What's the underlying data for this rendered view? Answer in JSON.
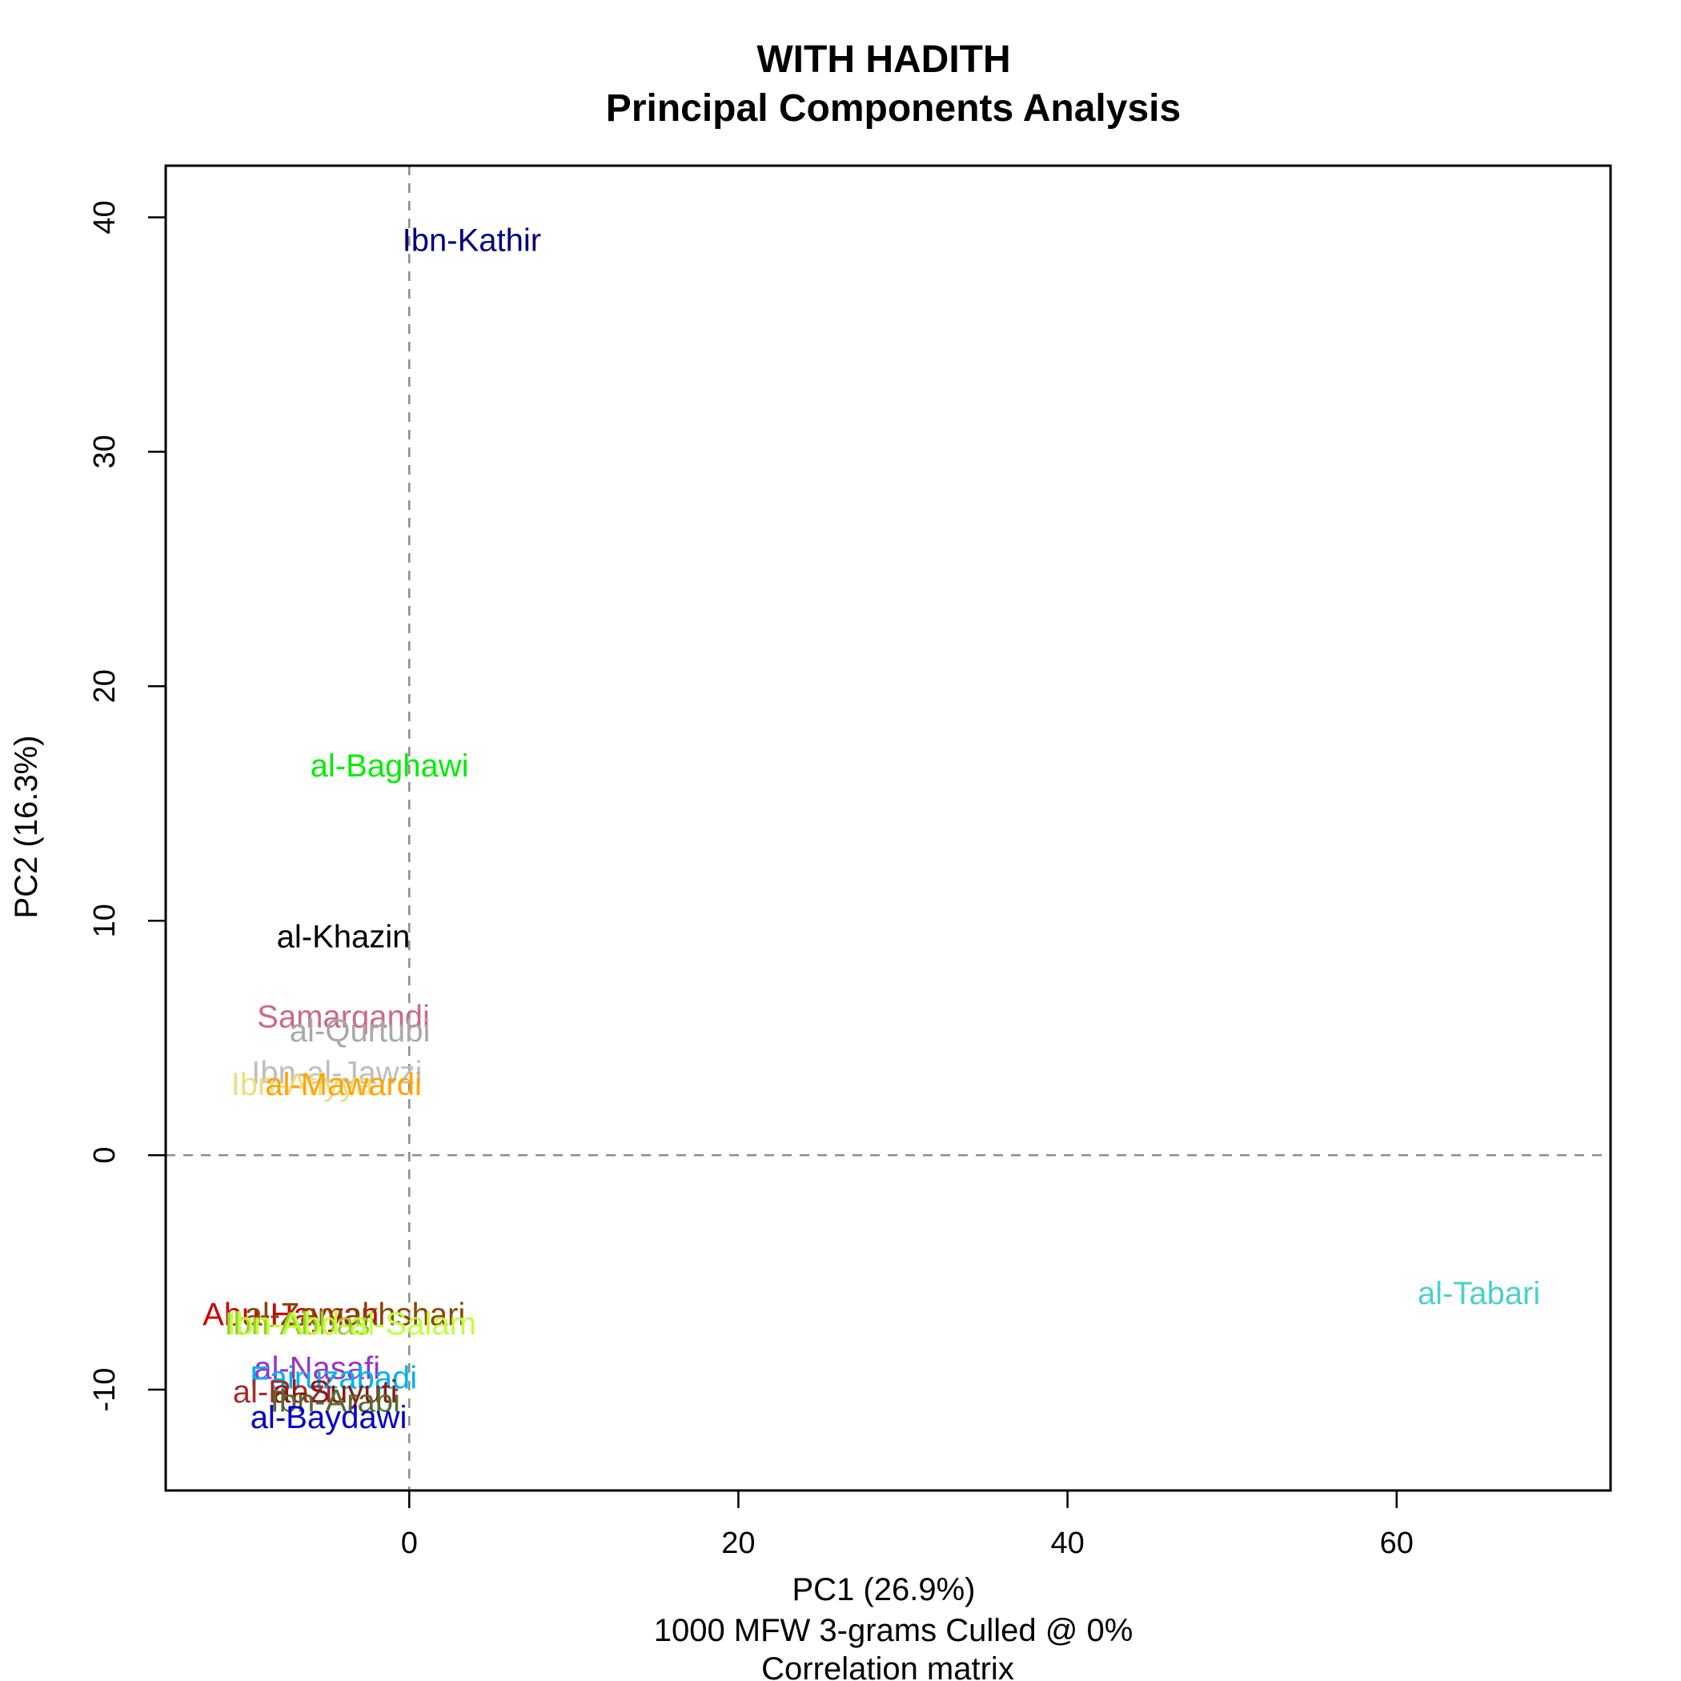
{
  "chart_data": {
    "type": "scatter",
    "title": "WITH HADITH",
    "subtitle": "Principal Components Analysis",
    "xlabel": "PC1 (26.9%)",
    "xlabel_lines": [
      "1000 MFW 3-grams Culled @ 0%",
      "Correlation matrix"
    ],
    "ylabel": "PC2 (16.3%)",
    "xlim": [
      -14.8,
      73
    ],
    "ylim": [
      -14.3,
      42.2
    ],
    "x_ticks": [
      0,
      20,
      40,
      60
    ],
    "y_ticks": [
      -10,
      0,
      10,
      20,
      30,
      40
    ],
    "reference_lines": {
      "x": 0,
      "y": 0,
      "style": "dashed"
    },
    "grid": false,
    "points": [
      {
        "label": "Ibn-Kathir",
        "x": 3.8,
        "y": 39.0,
        "color": "#000080"
      },
      {
        "label": "al-Baghawi",
        "x": -1.2,
        "y": 16.6,
        "color": "#00ee00"
      },
      {
        "label": "al-Khazin",
        "x": -4.0,
        "y": 9.3,
        "color": "#000000"
      },
      {
        "label": "Samarqandi",
        "x": -4.0,
        "y": 5.9,
        "color": "#cd6889"
      },
      {
        "label": "al-Qurtubi",
        "x": -3.0,
        "y": 5.3,
        "color": "#a9a9a9"
      },
      {
        "label": "Ibn-al-Jawzi",
        "x": -4.4,
        "y": 3.5,
        "color": "#bebebe"
      },
      {
        "label": "Ibn-Atiyya",
        "x": -6.5,
        "y": 3.0,
        "color": "#eedd82"
      },
      {
        "label": "al-Mawardi",
        "x": -4.0,
        "y": 3.0,
        "color": "#ffa500"
      },
      {
        "label": "Abu-Hayyan",
        "x": -7.2,
        "y": -6.8,
        "color": "#cd0000"
      },
      {
        "label": "al-Zamakhshari",
        "x": -3.3,
        "y": -6.8,
        "color": "#8b4500"
      },
      {
        "label": "Ibn-Abbas",
        "x": -6.8,
        "y": -7.2,
        "color": "#9acd32"
      },
      {
        "label": "Ibn-Abd-al-Salam",
        "x": -3.5,
        "y": -7.2,
        "color": "#c0ff3e"
      },
      {
        "label": "al-Tabari",
        "x": 65.0,
        "y": -5.9,
        "color": "#48d1cc"
      },
      {
        "label": "al-Nasafi",
        "x": -5.6,
        "y": -9.1,
        "color": "#9932cc"
      },
      {
        "label": "Fairuzabadi",
        "x": -4.6,
        "y": -9.5,
        "color": "#00b2ee"
      },
      {
        "label": "al-Razi",
        "x": -7.7,
        "y": -10.1,
        "color": "#a52a2a"
      },
      {
        "label": "al-Suyuti",
        "x": -4.5,
        "y": -10.1,
        "color": "#8b1a1a"
      },
      {
        "label": "Ibn-Arabi",
        "x": -4.5,
        "y": -10.5,
        "color": "#556b2f"
      },
      {
        "label": "al-Baydawi",
        "x": -4.9,
        "y": -11.2,
        "color": "#0000cd"
      }
    ]
  }
}
